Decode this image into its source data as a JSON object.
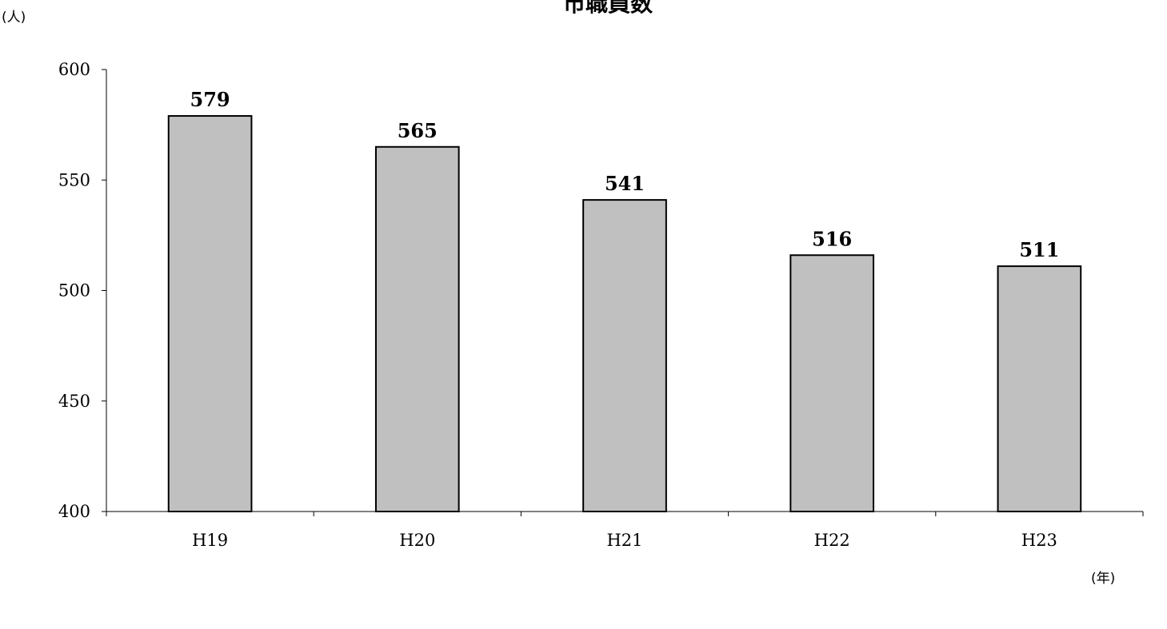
{
  "chart_data": {
    "type": "bar",
    "title": "市職員数",
    "ylabel": "(人)",
    "xlabel": "(年)",
    "categories": [
      "H19",
      "H20",
      "H21",
      "H22",
      "H23"
    ],
    "values": [
      579,
      565,
      541,
      516,
      511
    ],
    "ylim": [
      400,
      600
    ],
    "yticks": [
      400,
      450,
      500,
      550,
      600
    ],
    "grid": false,
    "legend": "none",
    "colors": {
      "bar_fill": "#c0c0c0",
      "bar_stroke": "#000000",
      "axis": "#000000",
      "text": "#000000"
    }
  }
}
